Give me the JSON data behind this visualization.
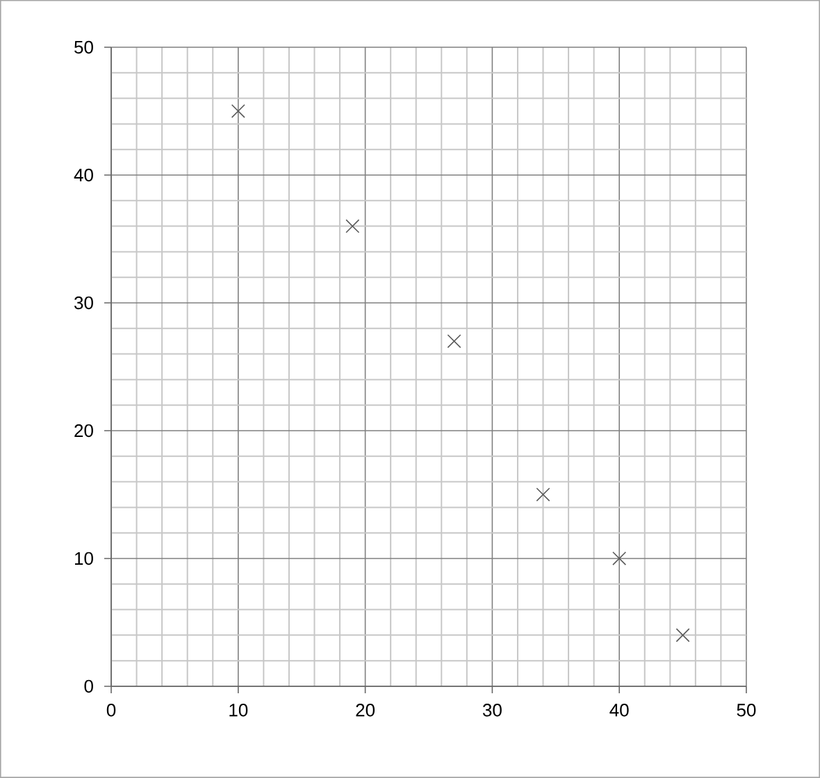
{
  "chart_data": {
    "type": "scatter",
    "x": [
      10,
      19,
      27,
      34,
      40,
      45
    ],
    "values": [
      45,
      36,
      27,
      15,
      10,
      4
    ],
    "color": "#595959",
    "marker": "cross",
    "xlim": [
      0,
      50
    ],
    "ylim": [
      0,
      50
    ],
    "xticks": [
      0,
      10,
      20,
      30,
      40,
      50
    ],
    "yticks": [
      0,
      10,
      20,
      30,
      40,
      50
    ],
    "grid": true
  }
}
